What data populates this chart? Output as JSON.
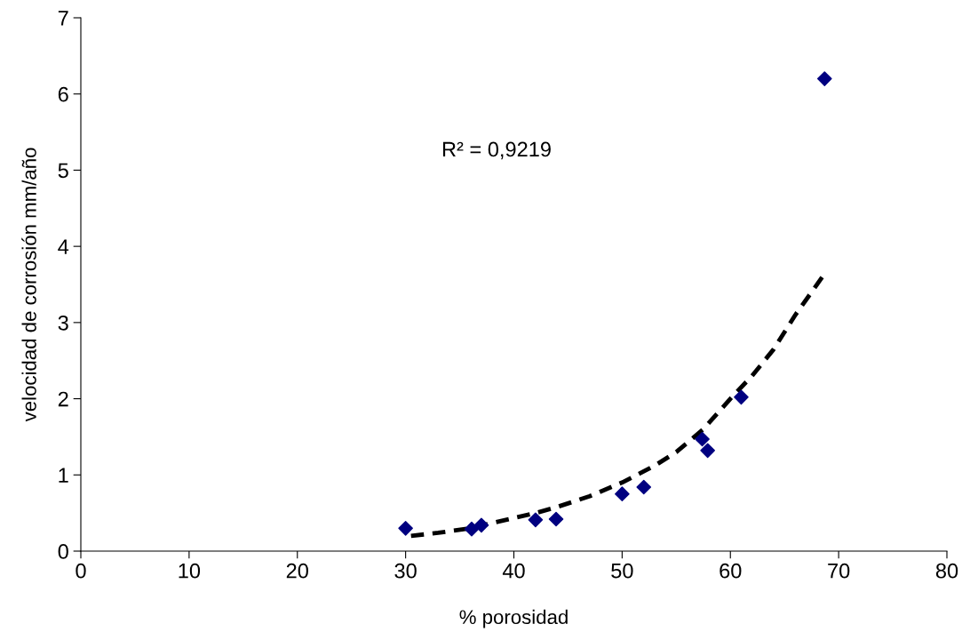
{
  "chart_data": {
    "type": "scatter",
    "xlabel": "% porosidad",
    "ylabel": "velocidad de corrosión mm/año",
    "annotations": [
      "R² = 0,9219"
    ],
    "xlim": [
      0,
      80
    ],
    "xticks": [
      0,
      10,
      20,
      30,
      40,
      50,
      60,
      70,
      80
    ],
    "ylim": [
      0,
      7
    ],
    "yticks": [
      0,
      1,
      2,
      3,
      4,
      5,
      6,
      7
    ],
    "grid": false,
    "legend": false,
    "series": [
      {
        "color": "#000080",
        "marker": "diamond",
        "x": [
          30,
          36.1,
          37,
          42,
          43.9,
          50,
          52,
          57.4,
          57.9,
          61,
          68.7
        ],
        "values": [
          0.3,
          0.29,
          0.34,
          0.41,
          0.42,
          0.75,
          0.84,
          1.47,
          1.32,
          2.02,
          6.2
        ]
      },
      {
        "type": "line",
        "color": "#000000",
        "line_style": "dashed",
        "marker": "none",
        "x": [
          30.5,
          33,
          36,
          38,
          42,
          44,
          47,
          50,
          53,
          55,
          57.5,
          60,
          62,
          64,
          66,
          68.5
        ],
        "values": [
          0.2,
          0.24,
          0.3,
          0.37,
          0.5,
          0.58,
          0.72,
          0.9,
          1.12,
          1.3,
          1.6,
          2.0,
          2.3,
          2.65,
          3.1,
          3.6
        ]
      }
    ]
  }
}
